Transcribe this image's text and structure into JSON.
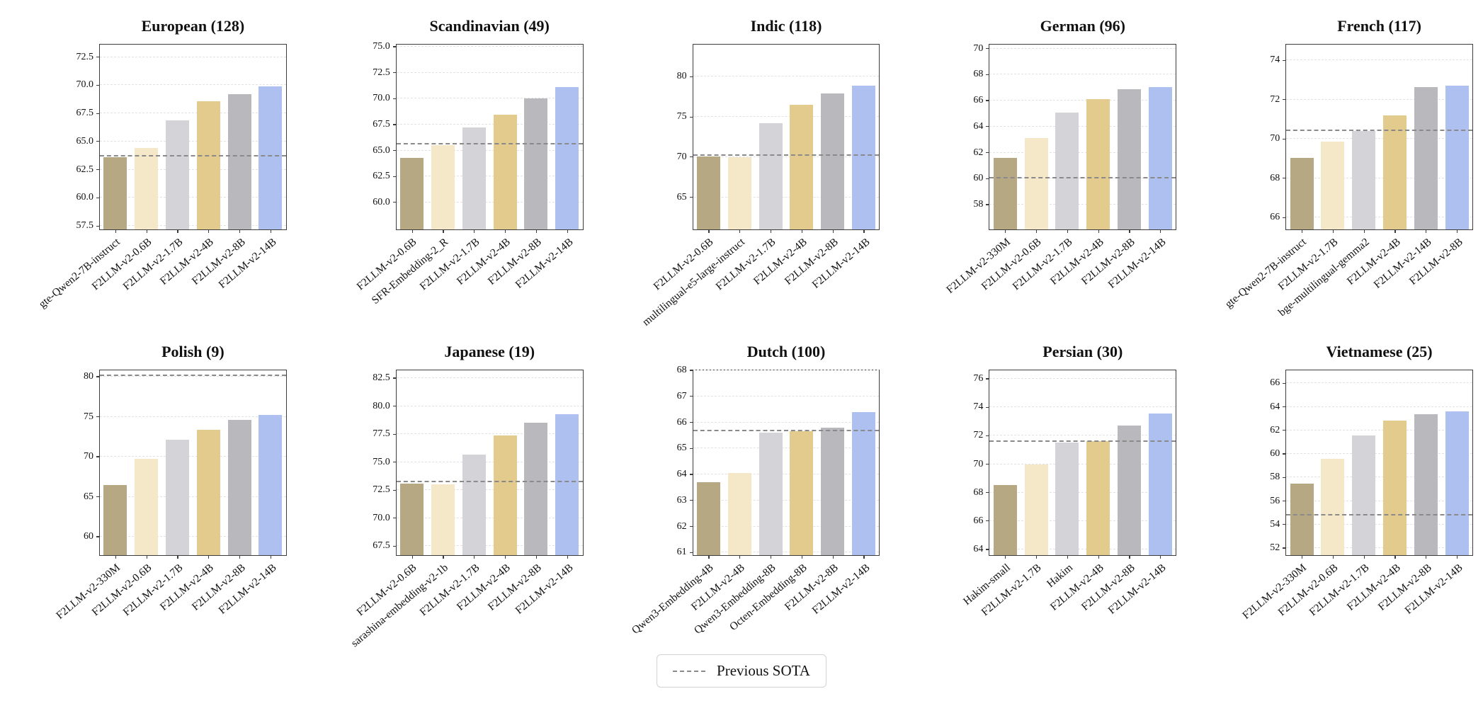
{
  "figure": {
    "background": "#ffffff",
    "text_color": "#111111",
    "axis_color": "#3c3c3c",
    "gridline_color": "#e2e2e2",
    "sota_line_color": "#8a8a8a",
    "bar_colors": [
      "#b5a882",
      "#f5e8c8",
      "#d3d3d8",
      "#e3cb8e",
      "#b9b9bd",
      "#aec0f0"
    ],
    "legend": {
      "label": "Previous SOTA"
    }
  },
  "chart_data": [
    {
      "type": "bar",
      "title": "European (128)",
      "categories": [
        "gte-Qwen2-7B-instruct",
        "F2LLM-v2-0.6B",
        "F2LLM-v2-1.7B",
        "F2LLM-v2-4B",
        "F2LLM-v2-8B",
        "F2LLM-v2-14B"
      ],
      "values": [
        63.6,
        64.45,
        66.85,
        68.6,
        69.2,
        69.9
      ],
      "previous_sota": 63.65,
      "yticks": [
        57.5,
        60,
        62.5,
        65,
        67.5,
        70,
        72.5
      ],
      "ytick_labels": [
        "57.5",
        "60.0",
        "62.5",
        "65.0",
        "67.5",
        "70.0",
        "72.5"
      ],
      "ylim": [
        57.2,
        73.6
      ],
      "grid": true,
      "legend_position": "none"
    },
    {
      "type": "bar",
      "title": "Scandinavian (49)",
      "categories": [
        "F2LLM-v2-0.6B",
        "SFR-Embedding-2_R",
        "F2LLM-v2-1.7B",
        "F2LLM-v2-4B",
        "F2LLM-v2-8B",
        "F2LLM-v2-14B"
      ],
      "values": [
        64.3,
        65.5,
        67.2,
        68.45,
        70.0,
        71.1
      ],
      "previous_sota": 65.6,
      "yticks": [
        60,
        62.5,
        65,
        67.5,
        70,
        72.5,
        75
      ],
      "ytick_labels": [
        "60.0",
        "62.5",
        "65.0",
        "67.5",
        "70.0",
        "72.5",
        "75.0"
      ],
      "ylim": [
        57.4,
        75.2
      ],
      "grid": true,
      "legend_position": "none"
    },
    {
      "type": "bar",
      "title": "Indic (118)",
      "categories": [
        "F2LLM-v2-0.6B",
        "multilingual-e5-large-instruct",
        "F2LLM-v2-1.7B",
        "F2LLM-v2-4B",
        "F2LLM-v2-8B",
        "F2LLM-v2-14B"
      ],
      "values": [
        70.1,
        70.0,
        74.2,
        76.55,
        77.9,
        78.85
      ],
      "previous_sota": 70.15,
      "yticks": [
        65,
        70,
        75,
        80
      ],
      "ytick_labels": [
        "65",
        "70",
        "75",
        "80"
      ],
      "ylim": [
        61.0,
        84.0
      ],
      "grid": true,
      "legend_position": "none"
    },
    {
      "type": "bar",
      "title": "German (96)",
      "categories": [
        "F2LLM-v2-330M",
        "F2LLM-v2-0.6B",
        "F2LLM-v2-1.7B",
        "F2LLM-v2-4B",
        "F2LLM-v2-8B",
        "F2LLM-v2-14B"
      ],
      "values": [
        61.6,
        63.1,
        65.1,
        66.1,
        66.85,
        67.05
      ],
      "previous_sota": 60.0,
      "yticks": [
        58,
        60,
        62,
        64,
        66,
        68,
        70
      ],
      "ytick_labels": [
        "58",
        "60",
        "62",
        "64",
        "66",
        "68",
        "70"
      ],
      "ylim": [
        56.1,
        70.3
      ],
      "grid": true,
      "legend_position": "none"
    },
    {
      "type": "bar",
      "title": "French (117)",
      "categories": [
        "gte-Qwen2-7B-instruct",
        "F2LLM-v2-1.7B",
        "bge-multilingual-gemma2",
        "F2LLM-v2-4B",
        "F2LLM-v2-14B",
        "F2LLM-v2-8B"
      ],
      "values": [
        69.05,
        69.85,
        70.4,
        71.2,
        72.65,
        72.7
      ],
      "previous_sota": 70.4,
      "yticks": [
        66,
        68,
        70,
        72,
        74
      ],
      "ytick_labels": [
        "66",
        "68",
        "70",
        "72",
        "74"
      ],
      "ylim": [
        65.4,
        74.8
      ],
      "grid": true,
      "legend_position": "none"
    },
    {
      "type": "bar",
      "title": "Polish (9)",
      "categories": [
        "F2LLM-v2-330M",
        "F2LLM-v2-0.6B",
        "F2LLM-v2-1.7B",
        "F2LLM-v2-4B",
        "F2LLM-v2-8B",
        "F2LLM-v2-14B"
      ],
      "values": [
        66.5,
        69.7,
        72.1,
        73.4,
        74.65,
        75.2
      ],
      "previous_sota": 80.1,
      "yticks": [
        60,
        65,
        70,
        75,
        80
      ],
      "ytick_labels": [
        "60",
        "65",
        "70",
        "75",
        "80"
      ],
      "ylim": [
        57.7,
        80.8
      ],
      "grid": true,
      "legend_position": "none"
    },
    {
      "type": "bar",
      "title": "Japanese (19)",
      "categories": [
        "F2LLM-v2-0.6B",
        "sarashina-embedding-v2-1b",
        "F2LLM-v2-1.7B",
        "F2LLM-v2-4B",
        "F2LLM-v2-8B",
        "F2LLM-v2-14B"
      ],
      "values": [
        73.1,
        73.05,
        75.65,
        77.4,
        78.55,
        79.3
      ],
      "previous_sota": 73.2,
      "yticks": [
        67.5,
        70,
        72.5,
        75,
        77.5,
        80,
        82.5
      ],
      "ytick_labels": [
        "67.5",
        "70.0",
        "72.5",
        "75.0",
        "77.5",
        "80.0",
        "82.5"
      ],
      "ylim": [
        66.7,
        83.2
      ],
      "grid": true,
      "legend_position": "none"
    },
    {
      "type": "bar",
      "title": "Dutch (100)",
      "categories": [
        "Qwen3-Embedding-4B",
        "F2LLM-v2-4B",
        "Qwen3-Embedding-8B",
        "Octen-Embedding-8B",
        "F2LLM-v2-8B",
        "F2LLM-v2-14B"
      ],
      "values": [
        63.7,
        64.05,
        65.6,
        65.65,
        65.8,
        66.4
      ],
      "previous_sota": 65.65,
      "yticks": [
        61,
        62,
        63,
        64,
        65,
        66,
        67,
        68
      ],
      "ytick_labels": [
        "61",
        "62",
        "63",
        "64",
        "65",
        "66",
        "67",
        "68"
      ],
      "ylim": [
        60.9,
        68.0
      ],
      "grid": true,
      "legend_position": "none"
    },
    {
      "type": "bar",
      "title": "Persian (30)",
      "categories": [
        "Hakim-small",
        "F2LLM-v2-1.7B",
        "Hakim",
        "F2LLM-v2-4B",
        "F2LLM-v2-8B",
        "F2LLM-v2-14B"
      ],
      "values": [
        68.55,
        70.0,
        71.5,
        71.6,
        72.7,
        73.55
      ],
      "previous_sota": 71.55,
      "yticks": [
        64,
        66,
        68,
        70,
        72,
        74,
        76
      ],
      "ytick_labels": [
        "64",
        "66",
        "68",
        "70",
        "72",
        "74",
        "76"
      ],
      "ylim": [
        63.6,
        76.6
      ],
      "grid": true,
      "legend_position": "none"
    },
    {
      "type": "bar",
      "title": "Vietnamese (25)",
      "categories": [
        "F2LLM-v2-330M",
        "F2LLM-v2-0.6B",
        "F2LLM-v2-1.7B",
        "F2LLM-v2-4B",
        "F2LLM-v2-8B",
        "F2LLM-v2-14B"
      ],
      "values": [
        57.45,
        59.6,
        61.55,
        62.8,
        63.35,
        63.6
      ],
      "previous_sota": 54.75,
      "yticks": [
        52,
        54,
        56,
        58,
        60,
        62,
        64,
        66
      ],
      "ytick_labels": [
        "52",
        "54",
        "56",
        "58",
        "60",
        "62",
        "64",
        "66"
      ],
      "ylim": [
        51.4,
        67.1
      ],
      "grid": true,
      "legend_position": "none"
    }
  ],
  "bottom_legend": {
    "label": "Previous SOTA"
  }
}
